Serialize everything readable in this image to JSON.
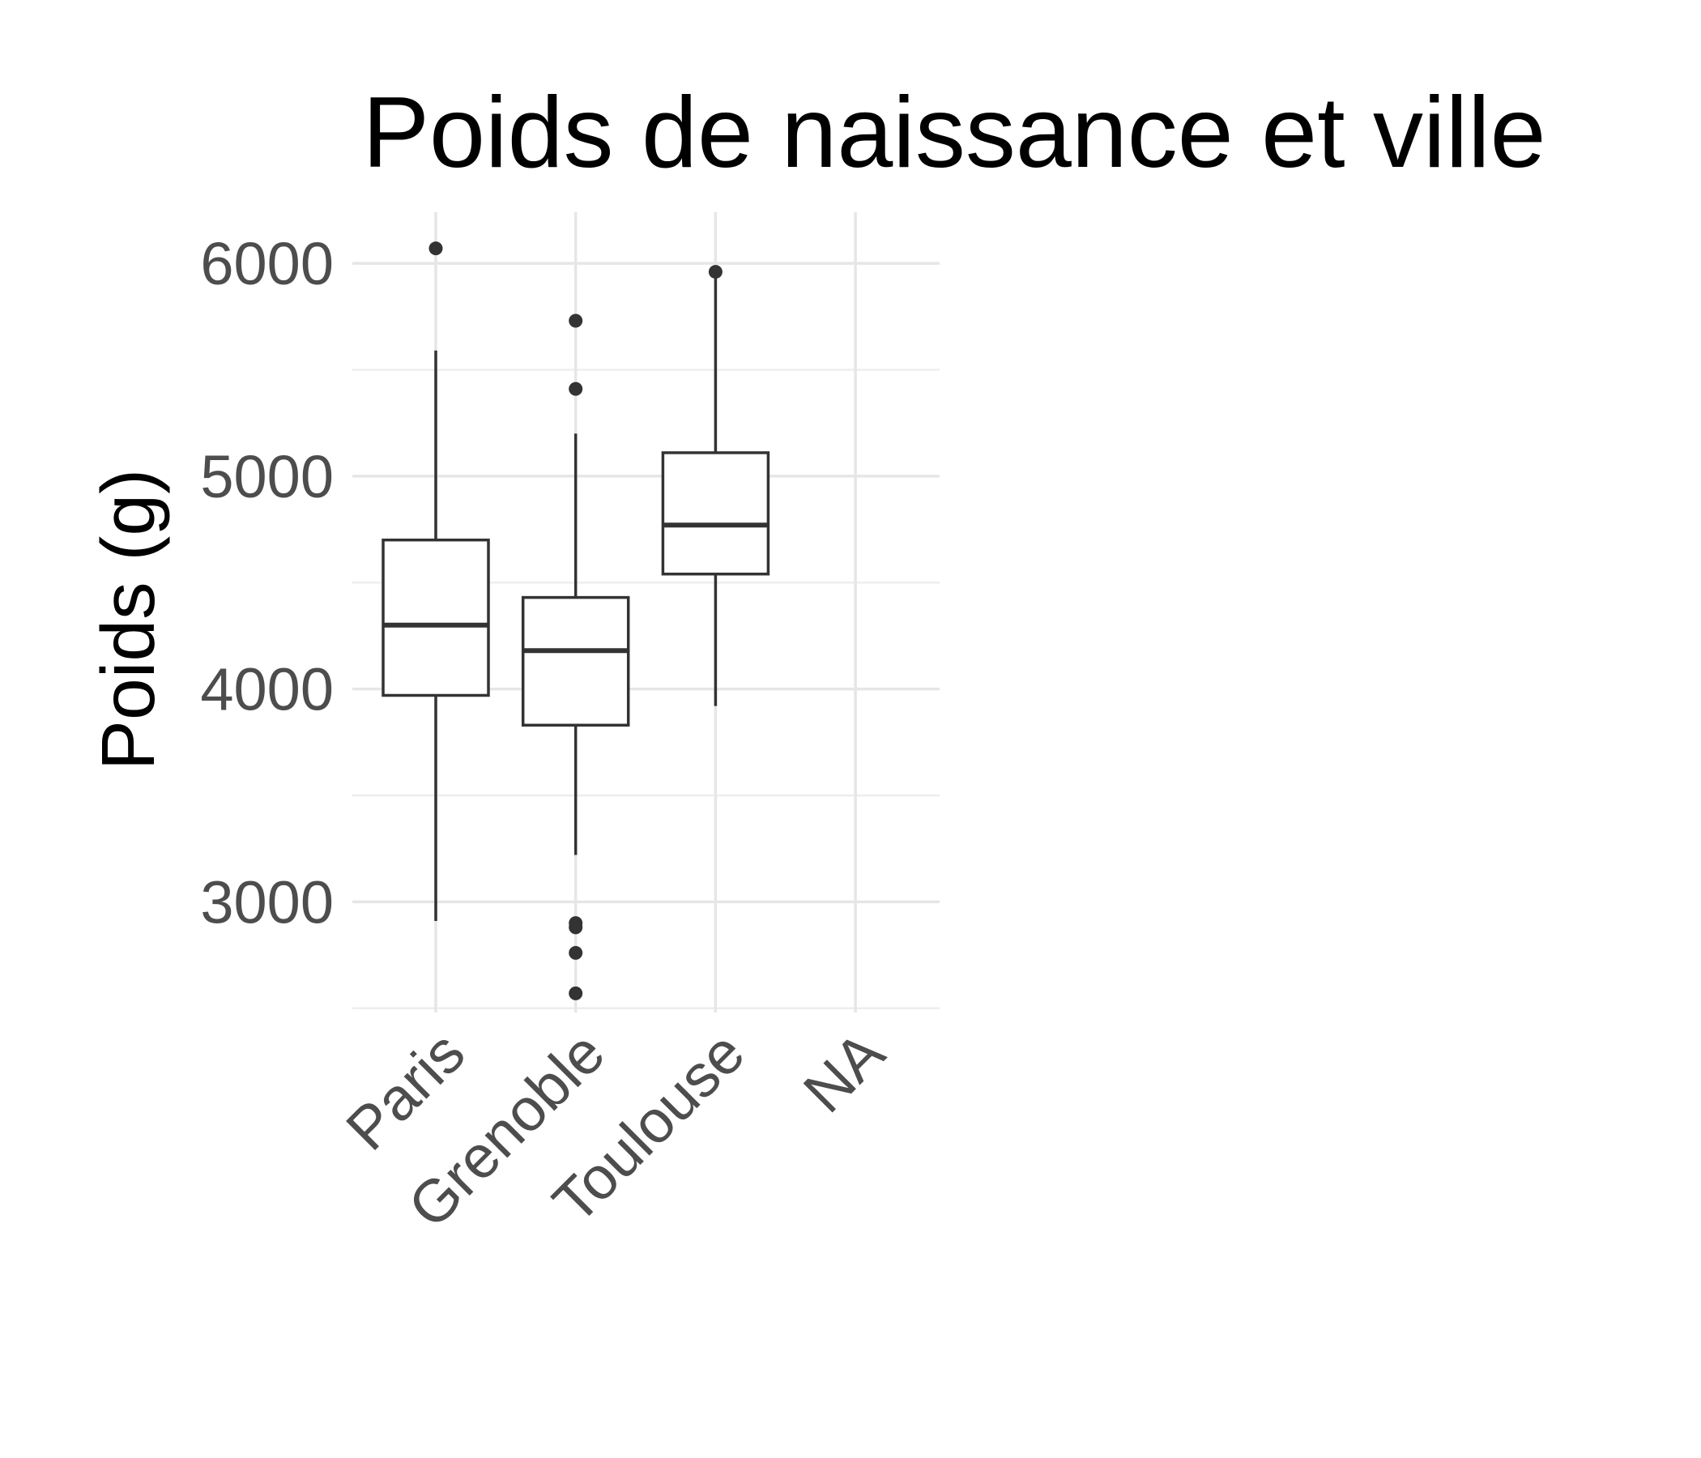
{
  "chart_data": {
    "type": "boxplot",
    "title": "Poids de naissance et ville",
    "xlabel": "",
    "ylabel": "Poids (g)",
    "categories": [
      "Paris",
      "Grenoble",
      "Toulouse",
      "NA"
    ],
    "ylim": [
      2480,
      6240
    ],
    "yticks": [
      3000,
      4000,
      5000,
      6000
    ],
    "ytick_labels": [
      "3000",
      "4000",
      "5000",
      "6000"
    ],
    "grid": true,
    "boxes": [
      {
        "category": "Paris",
        "whisker_low": 2910,
        "q1": 3970,
        "median": 4300,
        "q3": 4700,
        "whisker_high": 5590,
        "outliers": [
          6070
        ]
      },
      {
        "category": "Grenoble",
        "whisker_low": 3220,
        "q1": 3830,
        "median": 4180,
        "q3": 4430,
        "whisker_high": 5200,
        "outliers": [
          5730,
          5410,
          2900,
          2880,
          2760,
          2570
        ]
      },
      {
        "category": "Toulouse",
        "whisker_low": 3920,
        "q1": 4540,
        "median": 4770,
        "q3": 5110,
        "whisker_high": 5960,
        "outliers": [
          5960
        ]
      },
      {
        "category": "NA"
      }
    ]
  }
}
